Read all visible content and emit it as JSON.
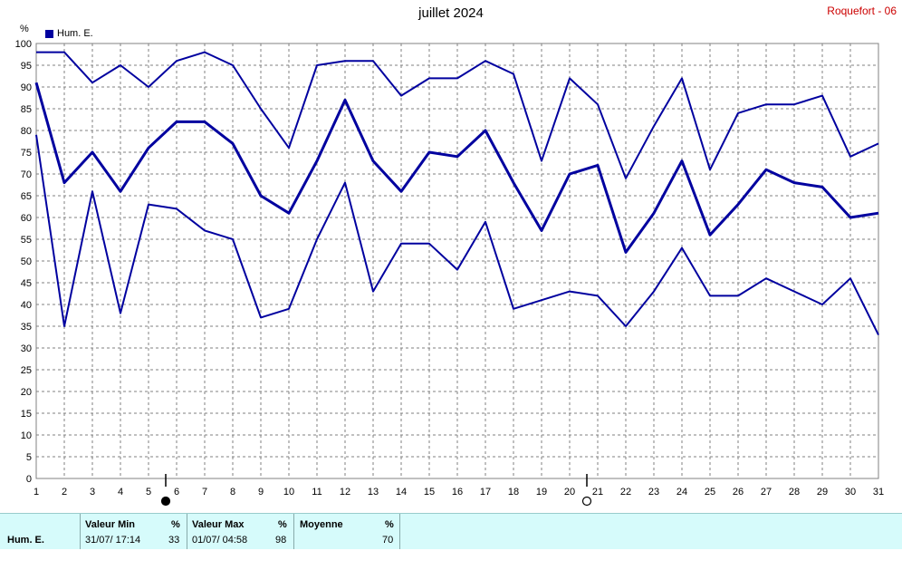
{
  "title": "juillet 2024",
  "location": "Roquefort - 06",
  "unit": "%",
  "legend": {
    "label": "Hum. E."
  },
  "colors": {
    "series": "#00009f",
    "grid": "#808080",
    "stats_bg": "#d6fbfb",
    "location": "#cc0000"
  },
  "chart_data": {
    "type": "line",
    "title": "juillet 2024",
    "ylabel": "%",
    "x": [
      1,
      2,
      3,
      4,
      5,
      6,
      7,
      8,
      9,
      10,
      11,
      12,
      13,
      14,
      15,
      16,
      17,
      18,
      19,
      20,
      21,
      22,
      23,
      24,
      25,
      26,
      27,
      28,
      29,
      30,
      31
    ],
    "xlim": [
      1,
      31
    ],
    "ylim": [
      0,
      100
    ],
    "yticks": [
      0,
      5,
      10,
      15,
      20,
      25,
      30,
      35,
      40,
      45,
      50,
      55,
      60,
      65,
      70,
      75,
      80,
      85,
      90,
      95,
      100
    ],
    "grid": true,
    "legend_position": "top-left",
    "series": [
      {
        "name": "Hum. E.",
        "role": "max",
        "values": [
          98,
          98,
          91,
          95,
          90,
          96,
          98,
          95,
          85,
          76,
          95,
          96,
          96,
          88,
          92,
          92,
          96,
          93,
          73,
          92,
          86,
          69,
          81,
          92,
          71,
          84,
          86,
          86,
          88,
          74,
          77
        ]
      },
      {
        "name": "Hum. E.",
        "role": "mean",
        "values": [
          91,
          68,
          75,
          66,
          76,
          82,
          82,
          77,
          65,
          61,
          73,
          87,
          73,
          66,
          75,
          74,
          80,
          68,
          57,
          70,
          72,
          52,
          61,
          73,
          56,
          63,
          71,
          68,
          67,
          60,
          61
        ]
      },
      {
        "name": "Hum. E.",
        "role": "min",
        "values": [
          79,
          35,
          66,
          38,
          63,
          62,
          57,
          55,
          37,
          39,
          55,
          68,
          43,
          54,
          54,
          48,
          59,
          39,
          41,
          43,
          42,
          35,
          43,
          53,
          42,
          42,
          46,
          43,
          40,
          46,
          33
        ]
      }
    ],
    "moon_markers": [
      {
        "day": 6,
        "phase": "new"
      },
      {
        "day": 21,
        "phase": "full"
      }
    ]
  },
  "stats": {
    "row_label": "Hum. E.",
    "min": {
      "header": "Valeur Min",
      "unit": "%",
      "date": "31/07/  17:14",
      "value": "33"
    },
    "max": {
      "header": "Valeur Max",
      "unit": "%",
      "date": "01/07/  04:58",
      "value": "98"
    },
    "mean": {
      "header": "Moyenne",
      "unit": "%",
      "value": "70"
    }
  }
}
